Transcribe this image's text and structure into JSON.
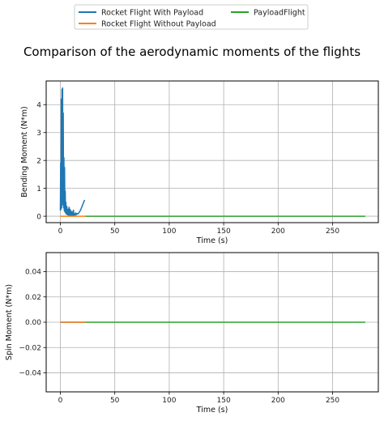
{
  "title": "Comparison of the aerodynamic moments of the flights",
  "legend": {
    "placement": "top-center",
    "entries": [
      {
        "name": "Rocket Flight With Payload",
        "color": "#1f77b4"
      },
      {
        "name": "Rocket Flight Without Payload",
        "color": "#ff7f0e"
      },
      {
        "name": "PayloadFlight",
        "color": "#2ca02c"
      }
    ]
  },
  "chart_data": [
    {
      "type": "line",
      "xlabel": "Time (s)",
      "ylabel": "Bending Moment (N*m)",
      "xlim": [
        -13,
        292
      ],
      "ylim": [
        -0.23,
        4.85
      ],
      "xticks": [
        0,
        50,
        100,
        150,
        200,
        250
      ],
      "yticks": [
        0,
        1,
        2,
        3,
        4
      ],
      "xtick_labels": [
        "0",
        "50",
        "100",
        "150",
        "200",
        "250"
      ],
      "ytick_labels": [
        "0",
        "1",
        "2",
        "3",
        "4"
      ],
      "grid": true,
      "series": [
        {
          "name": "Rocket Flight With Payload",
          "color": "#1f77b4",
          "x": [
            0,
            0.3,
            0.6,
            0.9,
            1.2,
            1.5,
            1.8,
            2.1,
            2.4,
            2.7,
            3.0,
            3.3,
            3.6,
            3.9,
            4.2,
            4.5,
            4.8,
            5.1,
            5.5,
            6.0,
            6.5,
            7.0,
            7.5,
            8.0,
            8.5,
            9.0,
            9.5,
            10.0,
            10.5,
            11.0,
            11.5,
            12.0,
            12.5,
            13.0,
            13.5,
            14.0,
            14.5,
            15.0,
            16.0,
            17.0,
            18.0,
            19.0,
            20.0,
            21.0,
            22.0,
            22.5
          ],
          "y": [
            0.2,
            1.9,
            0.25,
            4.2,
            0.3,
            4.55,
            0.4,
            4.6,
            0.5,
            3.7,
            0.3,
            2.1,
            0.2,
            1.75,
            0.15,
            0.9,
            0.12,
            0.5,
            0.08,
            0.35,
            0.05,
            0.25,
            0.04,
            0.32,
            0.03,
            0.25,
            0.02,
            0.18,
            0.03,
            0.15,
            0.02,
            0.22,
            0.03,
            0.08,
            0.04,
            0.12,
            0.05,
            0.1,
            0.08,
            0.12,
            0.18,
            0.26,
            0.36,
            0.46,
            0.56,
            0.58
          ]
        },
        {
          "name": "Rocket Flight Without Payload",
          "color": "#ff7f0e",
          "x": [
            0,
            2,
            4,
            6,
            8,
            10,
            12,
            14,
            16,
            18,
            20,
            22,
            23
          ],
          "y": [
            0,
            0,
            0,
            0,
            0,
            0,
            0,
            0,
            0,
            0,
            0,
            0,
            0
          ]
        },
        {
          "name": "PayloadFlight",
          "color": "#2ca02c",
          "x": [
            23,
            50,
            100,
            150,
            200,
            250,
            280
          ],
          "y": [
            0,
            0,
            0,
            0,
            0,
            0,
            0
          ]
        }
      ]
    },
    {
      "type": "line",
      "xlabel": "Time (s)",
      "ylabel": "Spin Moment (N*m)",
      "xlim": [
        -13,
        292
      ],
      "ylim": [
        -0.055,
        0.055
      ],
      "xticks": [
        0,
        50,
        100,
        150,
        200,
        250
      ],
      "yticks": [
        -0.04,
        -0.02,
        0.0,
        0.02,
        0.04
      ],
      "xtick_labels": [
        "0",
        "50",
        "100",
        "150",
        "200",
        "250"
      ],
      "ytick_labels": [
        "−0.04",
        "−0.02",
        "0.00",
        "0.02",
        "0.04"
      ],
      "grid": true,
      "series": [
        {
          "name": "Rocket Flight With Payload",
          "color": "#1f77b4",
          "x": [
            0,
            23
          ],
          "y": [
            0,
            0
          ]
        },
        {
          "name": "Rocket Flight Without Payload",
          "color": "#ff7f0e",
          "x": [
            0,
            23
          ],
          "y": [
            0,
            0
          ]
        },
        {
          "name": "PayloadFlight",
          "color": "#2ca02c",
          "x": [
            23,
            280
          ],
          "y": [
            0,
            0
          ]
        }
      ]
    }
  ]
}
